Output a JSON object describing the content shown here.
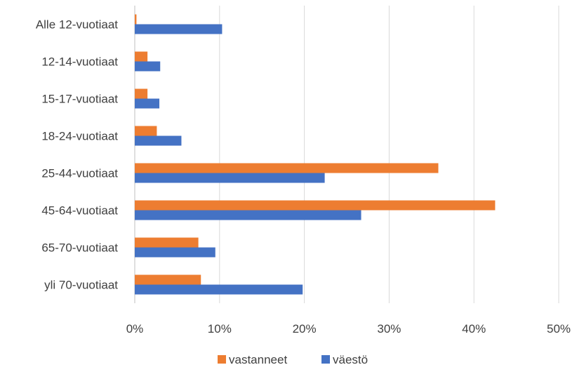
{
  "chart_data": {
    "type": "bar",
    "orientation": "horizontal",
    "categories": [
      "Alle 12-vuotiaat",
      "12-14-vuotiaat",
      "15-17-vuotiaat",
      "18-24-vuotiaat",
      "25-44-vuotiaat",
      "45-64-vuotiaat",
      "65-70-vuotiaat",
      "yli 70-vuotiaat"
    ],
    "series": [
      {
        "name": "vastanneet",
        "color": "#ED7D31",
        "values": [
          0.2,
          1.5,
          1.5,
          2.6,
          35.8,
          42.5,
          7.5,
          7.8
        ]
      },
      {
        "name": "väestö",
        "color": "#4472C4",
        "values": [
          10.3,
          3.0,
          2.9,
          5.5,
          22.4,
          26.7,
          9.5,
          19.8
        ]
      }
    ],
    "xlim": [
      0,
      50
    ],
    "x_ticks": [
      "0%",
      "10%",
      "20%",
      "30%",
      "40%",
      "50%"
    ],
    "x_tick_values": [
      0,
      10,
      20,
      30,
      40,
      50
    ],
    "grid": "vertical",
    "legend_position": "bottom",
    "title": "",
    "xlabel": "",
    "ylabel": ""
  }
}
